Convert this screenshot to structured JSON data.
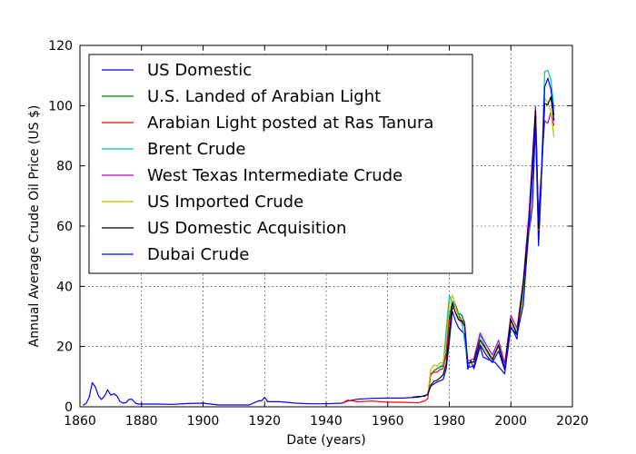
{
  "chart_data": {
    "type": "line",
    "xlabel": "Date (years)",
    "ylabel": "Annual Average Crude Oil Price (US $)",
    "xlim": [
      1860,
      2020
    ],
    "ylim": [
      0,
      120
    ],
    "xticks": [
      1860,
      1880,
      1900,
      1920,
      1940,
      1960,
      1980,
      2000,
      2020
    ],
    "yticks": [
      0,
      20,
      40,
      60,
      80,
      100,
      120
    ],
    "grid": true,
    "legend_position": "top-left",
    "series": [
      {
        "name": "US Domestic",
        "color": "#0000ff",
        "x": [
          1861,
          1862,
          1863,
          1864,
          1865,
          1866,
          1867,
          1868,
          1869,
          1870,
          1871,
          1872,
          1873,
          1874,
          1875,
          1876,
          1877,
          1878,
          1879,
          1880,
          1885,
          1890,
          1895,
          1900,
          1905,
          1910,
          1915,
          1918,
          1919,
          1920,
          1921,
          1925,
          1930,
          1935,
          1940,
          1945,
          1947,
          1950,
          1955,
          1960,
          1965,
          1970,
          1973,
          1974,
          1976,
          1978,
          1979,
          1980,
          1981,
          1982,
          1983,
          1985,
          1986,
          1987,
          1988,
          1990,
          1991,
          1995,
          1998,
          2000,
          2002,
          2005,
          2007,
          2008,
          2009,
          2010
        ],
        "y": [
          0.5,
          1.1,
          3.2,
          8.0,
          6.6,
          3.7,
          2.4,
          3.6,
          5.6,
          3.9,
          4.3,
          3.6,
          1.8,
          1.2,
          1.4,
          2.5,
          2.4,
          1.2,
          0.9,
          0.9,
          0.9,
          0.8,
          1.1,
          1.2,
          0.6,
          0.6,
          0.6,
          2.0,
          2.0,
          3.1,
          1.7,
          1.7,
          1.2,
          1.0,
          1.0,
          1.2,
          1.9,
          2.5,
          2.8,
          2.9,
          2.9,
          3.2,
          4.0,
          6.9,
          8.2,
          9.0,
          12.6,
          21.6,
          31.8,
          28.5,
          26.2,
          24.1,
          12.5,
          15.4,
          12.6,
          20.0,
          16.5,
          14.6,
          10.9,
          26.7,
          22.5,
          50.2,
          66.5,
          94.0,
          53.5,
          75.0
        ]
      },
      {
        "name": "U.S. Landed of Arabian Light",
        "color": "#008000",
        "x": [
          1974,
          1975,
          1976,
          1977,
          1978,
          1979,
          1980,
          1981,
          1982,
          1983,
          1984,
          1985
        ],
        "y": [
          10.5,
          12.0,
          12.6,
          13.2,
          13.5,
          18.0,
          30.0,
          35.0,
          34.0,
          31.0,
          30.5,
          28.0
        ]
      },
      {
        "name": "Arabian Light posted at Ras Tanura",
        "color": "#ff0000",
        "x": [
          1945,
          1947,
          1950,
          1955,
          1960,
          1965,
          1970,
          1971,
          1972,
          1973,
          1974,
          1975,
          1976,
          1977,
          1978,
          1979,
          1980,
          1981,
          1982,
          1983,
          1984,
          1985
        ],
        "y": [
          1.1,
          2.2,
          1.7,
          1.9,
          1.5,
          1.5,
          1.3,
          1.7,
          1.9,
          2.7,
          11.0,
          11.5,
          11.5,
          12.4,
          12.7,
          17.3,
          28.7,
          32.5,
          34.0,
          29.0,
          28.0,
          28.0
        ]
      },
      {
        "name": "Brent Crude",
        "color": "#00bfbf",
        "x": [
          1976,
          1978,
          1980,
          1982,
          1984,
          1986,
          1988,
          1990,
          1992,
          1994,
          1996,
          1998,
          2000,
          2002,
          2004,
          2006,
          2008,
          2009,
          2010,
          2011,
          2012,
          2013,
          2014
        ],
        "y": [
          12.8,
          14.0,
          36.8,
          32.9,
          28.7,
          14.4,
          14.9,
          23.7,
          19.3,
          15.8,
          20.8,
          12.8,
          28.7,
          25.0,
          38.3,
          65.1,
          97.3,
          61.7,
          79.5,
          111.3,
          111.7,
          108.7,
          99.0
        ]
      },
      {
        "name": "West Texas Intermediate Crude",
        "color": "#bf00bf",
        "x": [
          1983,
          1985,
          1986,
          1988,
          1990,
          1992,
          1994,
          1996,
          1998,
          2000,
          2002,
          2004,
          2006,
          2008,
          2009,
          2010,
          2011,
          2012,
          2013,
          2014
        ],
        "y": [
          30.0,
          27.9,
          15.1,
          16.0,
          24.5,
          20.6,
          17.2,
          22.1,
          14.4,
          30.4,
          26.1,
          41.5,
          66.0,
          99.7,
          61.9,
          79.5,
          95.0,
          94.1,
          97.9,
          93.3
        ]
      },
      {
        "name": "US Imported Crude",
        "color": "#bfbf00",
        "x": [
          1973,
          1974,
          1975,
          1976,
          1977,
          1978,
          1979,
          1980,
          1981,
          1982,
          1983,
          1984,
          1985,
          1986,
          1988,
          1990,
          1992,
          1994,
          1996,
          1998,
          2000,
          2002,
          2004,
          2006,
          2008,
          2009,
          2010,
          2011,
          2012,
          2013,
          2014
        ],
        "y": [
          4.1,
          12.5,
          13.9,
          13.5,
          14.6,
          14.6,
          21.5,
          33.9,
          37.1,
          33.6,
          29.3,
          28.9,
          26.9,
          14.0,
          14.7,
          21.1,
          18.2,
          15.5,
          20.0,
          12.1,
          27.7,
          23.7,
          36.0,
          59.1,
          94.7,
          58.8,
          76.0,
          102.4,
          101.1,
          98.1,
          89.6
        ]
      },
      {
        "name": "US Domestic Acquisition",
        "color": "#000000",
        "x": [
          1968,
          1970,
          1972,
          1973,
          1974,
          1975,
          1976,
          1977,
          1978,
          1979,
          1980,
          1981,
          1982,
          1983,
          1984,
          1985,
          1986,
          1988,
          1990,
          1992,
          1994,
          1996,
          1998,
          2000,
          2002,
          2004,
          2006,
          2008,
          2009,
          2010,
          2011,
          2012,
          2013,
          2014
        ],
        "y": [
          3.2,
          3.4,
          3.5,
          4.2,
          7.2,
          8.4,
          8.8,
          9.6,
          10.6,
          14.3,
          24.2,
          34.3,
          31.2,
          28.9,
          28.6,
          26.7,
          14.4,
          15.0,
          22.2,
          19.1,
          15.7,
          20.5,
          12.5,
          29.1,
          23.9,
          40.6,
          62.6,
          98.5,
          59.1,
          78.0,
          100.7,
          100.3,
          102.9,
          95.0
        ]
      },
      {
        "name": "Dubai Crude",
        "color": "#0000ff",
        "x": [
          1985,
          1986,
          1988,
          1990,
          1992,
          1994,
          1996,
          1998,
          2000,
          2002,
          2004,
          2006,
          2008,
          2009,
          2010,
          2011,
          2012,
          2013,
          2014
        ],
        "y": [
          27.5,
          13.1,
          13.5,
          20.5,
          17.2,
          14.7,
          18.5,
          12.2,
          26.2,
          23.8,
          33.6,
          61.5,
          93.8,
          61.8,
          78.1,
          106.2,
          109.1,
          105.5,
          96.7
        ]
      }
    ]
  }
}
